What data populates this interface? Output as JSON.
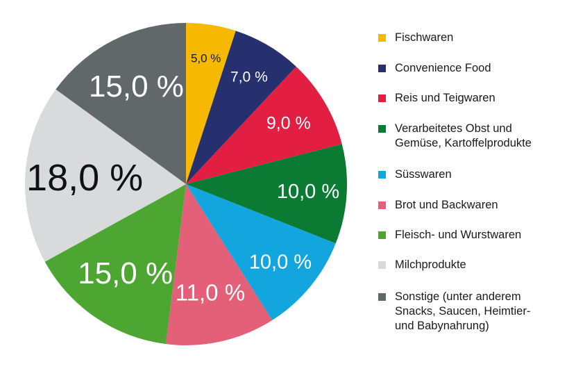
{
  "chart_data": {
    "type": "pie",
    "title": "",
    "categories": [
      "Fischwaren",
      "Convenience Food",
      "Reis und Teigwaren",
      "Verarbeitetes Obst und\nGemüse, Kartoffelprodukte",
      "Süsswaren",
      "Brot und Backwaren",
      "Fleisch- und Wurstwaren",
      "Milchprodukte",
      "Sonstige (unter anderem\nSnacks, Saucen, Heimtier-\nund Babynahrung)"
    ],
    "values": [
      5.0,
      7.0,
      9.0,
      10.0,
      10.0,
      11.0,
      15.0,
      18.0,
      15.0
    ],
    "data_labels": [
      "5,0 %",
      "7,0 %",
      "9,0 %",
      "10,0 %",
      "10,0 %",
      "11,0 %",
      "15,0 %",
      "18,0 %",
      "15,0 %"
    ],
    "colors": [
      "#f6b800",
      "#26306e",
      "#e21e42",
      "#0b7a32",
      "#13a6de",
      "#e45f78",
      "#4ea632",
      "#d8dadb",
      "#616869"
    ],
    "label_colors": [
      "#1a1a1a",
      "#ffffff",
      "#ffffff",
      "#ffffff",
      "#ffffff",
      "#ffffff",
      "#ffffff",
      "#111111",
      "#ffffff"
    ],
    "legend_position": "right",
    "start_angle_deg": 0,
    "direction": "clockwise"
  }
}
